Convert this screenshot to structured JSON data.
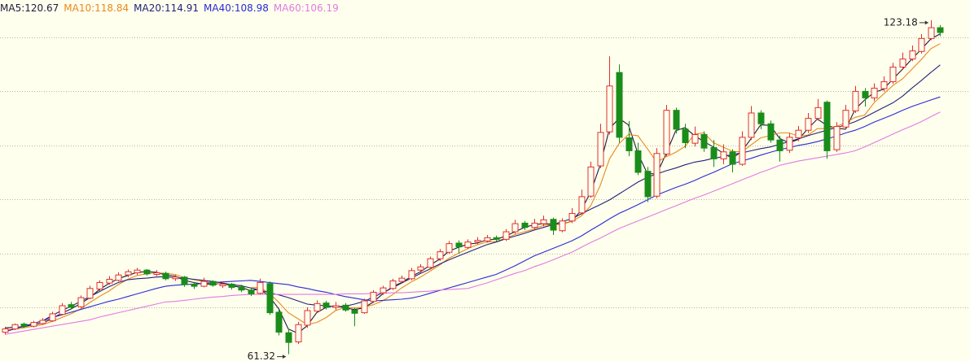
{
  "chart_data": {
    "type": "candlestick",
    "ylim": [
      60.06,
      126.93
    ],
    "yticks": [
      70,
      80,
      90,
      100,
      110,
      120
    ],
    "grid": true,
    "up_color": "#e0302c",
    "down_color": "#1a8c1a",
    "candles": [
      [
        65.4,
        66.4,
        65.0,
        66.0
      ],
      [
        66.0,
        67.0,
        65.8,
        66.8
      ],
      [
        66.9,
        67.2,
        66.2,
        66.5
      ],
      [
        66.5,
        67.5,
        66.3,
        67.2
      ],
      [
        67.0,
        68.0,
        66.8,
        67.6
      ],
      [
        67.5,
        69.2,
        67.3,
        68.8
      ],
      [
        68.7,
        70.8,
        68.5,
        70.3
      ],
      [
        70.5,
        71.0,
        69.6,
        70.0
      ],
      [
        70.1,
        72.2,
        69.9,
        71.8
      ],
      [
        71.7,
        74.0,
        71.5,
        73.5
      ],
      [
        73.4,
        75.0,
        73.0,
        74.6
      ],
      [
        74.5,
        75.8,
        74.2,
        75.2
      ],
      [
        75.0,
        76.5,
        74.8,
        76.0
      ],
      [
        76.0,
        77.0,
        75.6,
        76.6
      ],
      [
        76.4,
        77.3,
        76.0,
        76.9
      ],
      [
        76.9,
        77.1,
        75.9,
        76.2
      ],
      [
        76.1,
        76.9,
        75.8,
        76.4
      ],
      [
        76.3,
        76.6,
        75.0,
        75.3
      ],
      [
        75.3,
        76.0,
        74.9,
        75.6
      ],
      [
        75.6,
        75.8,
        73.8,
        74.2
      ],
      [
        74.3,
        74.7,
        73.4,
        73.9
      ],
      [
        73.9,
        75.5,
        73.7,
        74.8
      ],
      [
        74.8,
        75.0,
        73.8,
        74.1
      ],
      [
        74.0,
        74.8,
        73.6,
        74.3
      ],
      [
        74.3,
        74.5,
        73.3,
        73.7
      ],
      [
        73.8,
        74.2,
        72.8,
        73.2
      ],
      [
        73.2,
        73.6,
        72.1,
        72.5
      ],
      [
        72.6,
        75.3,
        72.4,
        74.6
      ],
      [
        74.4,
        74.8,
        68.6,
        69.0
      ],
      [
        69.1,
        69.5,
        64.8,
        65.4
      ],
      [
        65.3,
        66.0,
        61.32,
        63.5
      ],
      [
        63.6,
        67.3,
        63.2,
        66.8
      ],
      [
        66.7,
        70.0,
        66.2,
        69.4
      ],
      [
        69.3,
        71.3,
        69.0,
        70.7
      ],
      [
        70.8,
        71.2,
        69.6,
        70.0
      ],
      [
        70.0,
        71.0,
        69.5,
        70.3
      ],
      [
        70.4,
        70.8,
        69.2,
        69.5
      ],
      [
        69.5,
        69.9,
        66.5,
        68.9
      ],
      [
        69.0,
        71.6,
        68.8,
        71.2
      ],
      [
        71.1,
        73.2,
        70.8,
        72.8
      ],
      [
        72.7,
        74.0,
        72.3,
        73.6
      ],
      [
        73.5,
        75.3,
        73.2,
        74.9
      ],
      [
        74.8,
        75.9,
        74.5,
        75.4
      ],
      [
        75.3,
        77.3,
        75.0,
        76.8
      ],
      [
        76.9,
        78.0,
        76.4,
        77.5
      ],
      [
        77.4,
        79.4,
        77.0,
        79.0
      ],
      [
        79.0,
        80.8,
        78.6,
        80.3
      ],
      [
        80.2,
        82.3,
        79.9,
        81.8
      ],
      [
        81.9,
        82.4,
        80.0,
        81.2
      ],
      [
        81.1,
        82.6,
        80.8,
        82.1
      ],
      [
        82.1,
        83.0,
        81.7,
        82.4
      ],
      [
        82.3,
        83.4,
        82.0,
        82.9
      ],
      [
        82.9,
        83.3,
        82.1,
        82.6
      ],
      [
        82.6,
        84.5,
        82.3,
        84.0
      ],
      [
        84.0,
        86.2,
        83.6,
        85.5
      ],
      [
        85.6,
        86.0,
        84.3,
        84.8
      ],
      [
        84.8,
        86.4,
        84.5,
        85.6
      ],
      [
        85.5,
        87.0,
        85.0,
        86.2
      ],
      [
        86.3,
        86.6,
        83.4,
        84.3
      ],
      [
        84.2,
        86.5,
        83.9,
        86.0
      ],
      [
        86.0,
        88.4,
        85.6,
        87.4
      ],
      [
        87.5,
        91.8,
        87.2,
        90.5
      ],
      [
        90.6,
        97.0,
        90.3,
        96.0
      ],
      [
        96.2,
        104.0,
        95.8,
        102.4
      ],
      [
        102.5,
        116.5,
        102.0,
        111.0
      ],
      [
        113.5,
        115.0,
        100.5,
        101.5
      ],
      [
        101.4,
        104.5,
        98.0,
        99.0
      ],
      [
        99.0,
        100.5,
        94.5,
        95.0
      ],
      [
        95.2,
        96.0,
        89.5,
        90.5
      ],
      [
        90.6,
        99.5,
        90.2,
        98.5
      ],
      [
        98.4,
        107.5,
        98.0,
        106.5
      ],
      [
        106.5,
        107.0,
        102.2,
        103.0
      ],
      [
        103.0,
        104.0,
        99.5,
        100.5
      ],
      [
        100.4,
        103.5,
        99.8,
        102.0
      ],
      [
        102.0,
        102.6,
        98.8,
        99.5
      ],
      [
        99.6,
        101.0,
        96.0,
        97.5
      ],
      [
        97.5,
        100.2,
        96.5,
        98.8
      ],
      [
        98.8,
        99.3,
        95.0,
        96.5
      ],
      [
        96.5,
        102.6,
        96.2,
        101.5
      ],
      [
        101.5,
        107.3,
        101.0,
        106.0
      ],
      [
        106.0,
        106.5,
        103.0,
        104.0
      ],
      [
        104.0,
        104.6,
        100.5,
        101.0
      ],
      [
        101.0,
        101.8,
        97.0,
        99.0
      ],
      [
        99.1,
        102.3,
        98.6,
        101.5
      ],
      [
        101.4,
        103.6,
        100.8,
        102.8
      ],
      [
        102.8,
        106.0,
        102.3,
        105.0
      ],
      [
        105.0,
        108.6,
        104.6,
        107.0
      ],
      [
        108.0,
        108.3,
        97.5,
        99.0
      ],
      [
        99.2,
        104.3,
        98.8,
        103.5
      ],
      [
        103.4,
        107.5,
        103.0,
        106.5
      ],
      [
        106.4,
        111.0,
        106.0,
        110.0
      ],
      [
        110.0,
        110.6,
        107.2,
        108.8
      ],
      [
        108.8,
        111.5,
        108.2,
        110.6
      ],
      [
        110.5,
        112.8,
        110.0,
        111.8
      ],
      [
        111.8,
        115.3,
        111.4,
        114.5
      ],
      [
        114.5,
        117.2,
        114.0,
        116.0
      ],
      [
        116.0,
        118.5,
        115.6,
        117.5
      ],
      [
        117.4,
        120.6,
        117.0,
        119.8
      ],
      [
        119.8,
        123.18,
        119.5,
        121.8
      ],
      [
        121.8,
        122.3,
        120.2,
        120.9
      ]
    ],
    "series": [
      {
        "name": "MA5:",
        "color": "#1c1c3c",
        "values": [
          66.2,
          66.3,
          66.4,
          66.8,
          67.1,
          67.9,
          68.9,
          69.7,
          70.7,
          71.8,
          73.3,
          74.4,
          75.3,
          75.9,
          76.5,
          76.6,
          76.5,
          76.0,
          75.8,
          75.0,
          74.6,
          74.3,
          74.3,
          74.4,
          74.0,
          73.7,
          73.1,
          73.4,
          72.0,
          69.7,
          66.0,
          65.2,
          66.6,
          69.0,
          70.0,
          70.3,
          69.9,
          69.6,
          69.9,
          71.0,
          72.5,
          73.8,
          74.6,
          75.7,
          76.6,
          77.8,
          78.9,
          80.4,
          81.1,
          81.7,
          81.9,
          82.5,
          82.6,
          83.2,
          84.0,
          84.8,
          85.3,
          85.5,
          85.4,
          85.5,
          85.9,
          88.0,
          91.3,
          96.3,
          103.1,
          105.0,
          103.8,
          98.5,
          94.8,
          94.7,
          98.5,
          102.7,
          103.3,
          101.8,
          100.7,
          99.7,
          98.6,
          97.6,
          98.9,
          101.3,
          103.8,
          103.7,
          101.3,
          100.5,
          101.1,
          103.1,
          104.9,
          103.7,
          103.2,
          103.0,
          106.7,
          108.4,
          109.8,
          110.4,
          112.3,
          114.1,
          116.0,
          117.8,
          119.7,
          120.67
        ]
      },
      {
        "name": "MA10:",
        "color": "#e8891c",
        "values": [
          65.8,
          66.0,
          66.2,
          66.5,
          66.8,
          67.4,
          68.1,
          68.8,
          69.7,
          70.9,
          72.0,
          73.0,
          74.2,
          75.2,
          75.9,
          76.2,
          76.4,
          76.3,
          76.1,
          75.5,
          75.1,
          74.8,
          74.5,
          74.3,
          74.2,
          74.0,
          73.6,
          73.7,
          72.6,
          70.9,
          69.0,
          67.9,
          66.8,
          67.2,
          68.1,
          69.4,
          70.0,
          69.9,
          70.0,
          70.5,
          71.2,
          72.3,
          73.6,
          74.7,
          75.6,
          76.7,
          77.8,
          79.1,
          80.0,
          80.9,
          81.6,
          82.1,
          82.2,
          82.8,
          83.5,
          84.0,
          84.5,
          85.2,
          85.3,
          85.4,
          85.9,
          86.9,
          88.8,
          92.5,
          97.5,
          100.3,
          102.0,
          101.8,
          99.4,
          96.9,
          97.9,
          98.7,
          99.8,
          102.1,
          102.3,
          100.5,
          99.7,
          98.9,
          98.8,
          100.1,
          101.4,
          101.8,
          102.3,
          102.3,
          101.7,
          101.9,
          103.1,
          103.1,
          103.5,
          104.2,
          105.2,
          105.6,
          107.9,
          109.5,
          111.1,
          112.3,
          114.1,
          115.9,
          117.9,
          118.84
        ]
      },
      {
        "name": "MA20:",
        "color": "#22227a",
        "values": [
          65.5,
          66.0,
          66.5,
          67.0,
          67.5,
          68.5,
          69.4,
          70.2,
          71.1,
          72.0,
          72.9,
          73.8,
          74.6,
          75.1,
          75.3,
          75.4,
          75.6,
          75.7,
          75.5,
          75.4,
          75.2,
          75.0,
          74.8,
          74.5,
          74.2,
          74.0,
          73.6,
          73.2,
          72.7,
          72.3,
          71.8,
          71.2,
          70.6,
          70.4,
          70.3,
          70.1,
          70.2,
          70.6,
          71.1,
          71.9,
          72.7,
          73.6,
          74.5,
          75.4,
          76.3,
          77.1,
          78.0,
          78.8,
          79.5,
          80.2,
          80.9,
          81.6,
          82.1,
          82.7,
          83.2,
          83.7,
          84.3,
          84.8,
          85.3,
          85.9,
          86.4,
          87.3,
          88.2,
          89.0,
          89.9,
          91.0,
          92.1,
          93.2,
          94.1,
          94.7,
          95.3,
          95.8,
          96.4,
          96.9,
          97.2,
          97.6,
          97.9,
          98.3,
          98.6,
          99.0,
          99.4,
          99.7,
          100.2,
          100.7,
          101.2,
          101.8,
          102.3,
          102.8,
          103.3,
          103.8,
          104.4,
          105.2,
          106.1,
          107.0,
          107.9,
          109.1,
          110.6,
          112.0,
          113.5,
          114.91
        ]
      },
      {
        "name": "MA40:",
        "color": "#2a2ad6",
        "values": [
          65.5,
          66.0,
          66.5,
          67.0,
          67.5,
          68.1,
          68.6,
          69.1,
          69.6,
          70.1,
          70.6,
          71.1,
          71.5,
          72.0,
          72.5,
          73.0,
          73.5,
          73.9,
          74.1,
          74.2,
          74.3,
          74.4,
          74.6,
          74.7,
          74.8,
          74.9,
          75.0,
          74.8,
          74.6,
          74.4,
          74.2,
          73.8,
          73.5,
          73.1,
          72.8,
          72.4,
          72.0,
          71.7,
          71.4,
          71.2,
          71.3,
          71.4,
          71.5,
          71.7,
          72.1,
          72.6,
          73.1,
          73.6,
          74.1,
          74.6,
          75.1,
          75.6,
          76.1,
          76.9,
          77.7,
          78.6,
          79.5,
          80.2,
          80.9,
          81.6,
          82.3,
          83.2,
          84.3,
          85.3,
          86.4,
          87.4,
          88.2,
          89.0,
          89.9,
          90.8,
          91.5,
          92.2,
          92.8,
          93.5,
          94.3,
          95.0,
          95.8,
          96.6,
          97.1,
          97.6,
          98.2,
          98.7,
          99.2,
          99.6,
          100.0,
          100.3,
          100.7,
          101.2,
          101.7,
          102.3,
          102.8,
          103.5,
          104.3,
          105.0,
          105.7,
          106.5,
          107.2,
          107.8,
          108.4,
          108.98
        ]
      },
      {
        "name": "MA60:",
        "color": "#e07be0",
        "values": [
          65.0,
          65.3,
          65.6,
          65.9,
          66.2,
          66.5,
          66.8,
          67.1,
          67.4,
          67.7,
          68.2,
          68.6,
          69.0,
          69.4,
          69.8,
          70.2,
          70.6,
          71.0,
          71.1,
          71.3,
          71.5,
          71.7,
          71.9,
          72.0,
          72.2,
          72.3,
          72.4,
          72.4,
          72.4,
          72.4,
          72.4,
          72.4,
          72.4,
          72.4,
          72.4,
          72.4,
          72.5,
          72.5,
          72.5,
          72.6,
          72.6,
          72.7,
          72.7,
          72.8,
          72.9,
          73.0,
          73.2,
          73.3,
          73.4,
          73.5,
          74.0,
          74.5,
          75.1,
          75.7,
          76.3,
          76.8,
          77.5,
          78.1,
          78.8,
          79.5,
          80.2,
          81.1,
          82.0,
          82.8,
          83.7,
          84.6,
          85.3,
          86.0,
          86.7,
          87.4,
          88.1,
          88.8,
          89.5,
          90.2,
          90.8,
          91.5,
          92.2,
          92.9,
          93.6,
          94.3,
          95.0,
          95.6,
          96.3,
          96.7,
          97.1,
          97.4,
          97.7,
          98.0,
          98.3,
          98.6,
          99.0,
          99.7,
          100.5,
          101.3,
          102.1,
          102.9,
          103.6,
          104.4,
          105.3,
          106.19
        ]
      }
    ]
  }
}
